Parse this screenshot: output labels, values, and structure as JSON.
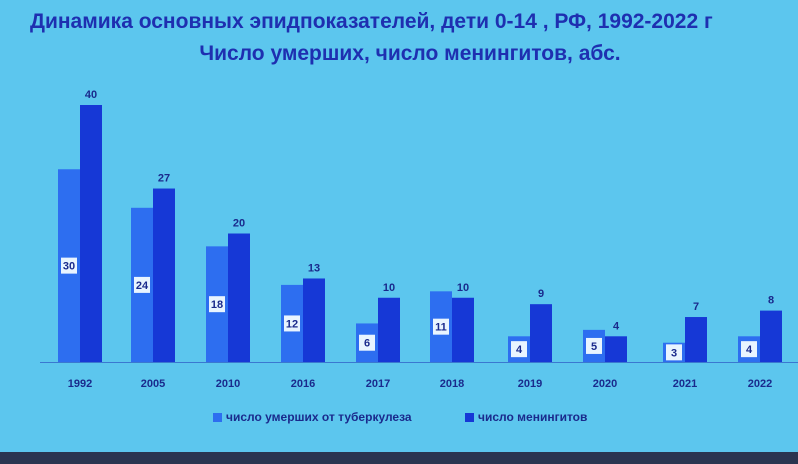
{
  "chart_data": {
    "type": "bar",
    "title": "Динамика основных эпидпоказателей,  дети 0-14 , РФ, 1992-2022 г",
    "subtitle": "Число умерших, число менингитов, абс.",
    "categories": [
      "1992",
      "2005",
      "2010",
      "2016",
      "2017",
      "2018",
      "2019",
      "2020",
      "2021",
      "2022"
    ],
    "series": [
      {
        "name": "число умерших от туберкулеза",
        "color": "#2d6ef0",
        "values": [
          30,
          24,
          18,
          12,
          6,
          11,
          4,
          5,
          3,
          4
        ]
      },
      {
        "name": "число менингитов",
        "color": "#1638d6",
        "values": [
          40,
          27,
          20,
          13,
          10,
          10,
          9,
          4,
          7,
          8
        ]
      }
    ],
    "ylim": [
      0,
      40
    ],
    "grid": false,
    "legend": "bottom"
  }
}
